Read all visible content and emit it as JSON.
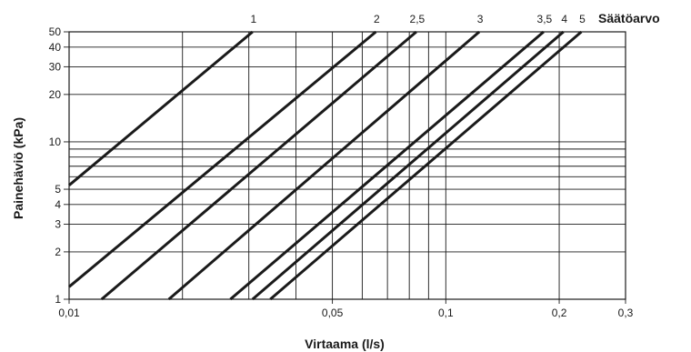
{
  "chart_data": {
    "type": "line",
    "xscale": "log",
    "yscale": "log",
    "xlim": [
      0.01,
      0.3
    ],
    "ylim": [
      1,
      50
    ],
    "xlabel": "Virtaama (l/s)",
    "ylabel": "Painehäviö (kPa)",
    "legend_title": "Säätöarvo",
    "grid": true,
    "x_ticks": [
      {
        "v": 0.01,
        "label": "0,01"
      },
      {
        "v": 0.05,
        "label": "0,05"
      },
      {
        "v": 0.1,
        "label": "0,1"
      },
      {
        "v": 0.2,
        "label": "0,2"
      },
      {
        "v": 0.3,
        "label": "0,3"
      }
    ],
    "x_grid": [
      0.02,
      0.03,
      0.04,
      0.05,
      0.06,
      0.07,
      0.08,
      0.09,
      0.1,
      0.2
    ],
    "y_ticks": [
      {
        "v": 1,
        "label": "1"
      },
      {
        "v": 2,
        "label": "2"
      },
      {
        "v": 3,
        "label": "3"
      },
      {
        "v": 4,
        "label": "4"
      },
      {
        "v": 5,
        "label": "5"
      },
      {
        "v": 10,
        "label": "10"
      },
      {
        "v": 20,
        "label": "20"
      },
      {
        "v": 30,
        "label": "30"
      },
      {
        "v": 40,
        "label": "40"
      },
      {
        "v": 50,
        "label": "50"
      }
    ],
    "y_grid": [
      2,
      3,
      4,
      5,
      6,
      7,
      8,
      9,
      10,
      20,
      30,
      40
    ],
    "series": [
      {
        "name": "1",
        "points": [
          [
            0.01,
            5.3
          ],
          [
            0.0307,
            50
          ]
        ]
      },
      {
        "name": "2",
        "points": [
          [
            0.01,
            1.2
          ],
          [
            0.0652,
            50
          ]
        ]
      },
      {
        "name": "2,5",
        "points": [
          [
            0.0122,
            1
          ],
          [
            0.0835,
            50
          ]
        ]
      },
      {
        "name": "3",
        "points": [
          [
            0.0184,
            1
          ],
          [
            0.1227,
            50
          ]
        ]
      },
      {
        "name": "3,5",
        "points": [
          [
            0.0268,
            1
          ],
          [
            0.1818,
            50
          ]
        ]
      },
      {
        "name": "4",
        "points": [
          [
            0.0307,
            1
          ],
          [
            0.2052,
            50
          ]
        ]
      },
      {
        "name": "5",
        "points": [
          [
            0.0342,
            1
          ],
          [
            0.229,
            50
          ]
        ]
      }
    ]
  }
}
